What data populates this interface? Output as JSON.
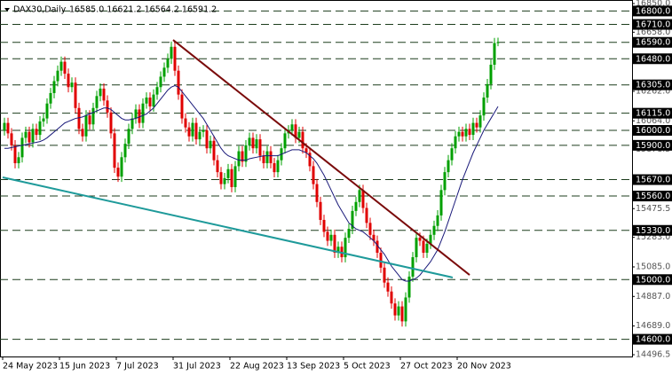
{
  "chart_data": {
    "type": "candlestick",
    "title": "DAX30,Daily",
    "ohlc_text": "16585.0 16621.2 16564.2 16591.2",
    "up_color": "#00a000",
    "down_color": "#e00000",
    "ma_color": "#1a1a7a",
    "ylim": [
      14496.5,
      16850
    ],
    "yticks": [
      {
        "value": 16850,
        "label": "16850.0"
      },
      {
        "value": 16658,
        "label": "16658.0"
      },
      {
        "value": 16460,
        "label": "16460.0"
      },
      {
        "value": 16262,
        "label": "16262.0"
      },
      {
        "value": 16064,
        "label": "16064.0"
      },
      15871.5,
      15673.5,
      15475.5,
      {
        "value": 15283,
        "label": "15283.0"
      },
      {
        "value": 15085,
        "label": "15085.0"
      },
      {
        "value": 14887,
        "label": "14887.0"
      },
      {
        "value": 14689,
        "label": "14689.0"
      },
      14496.5
    ],
    "levels": [
      {
        "value": 16800,
        "label": "16800.0"
      },
      {
        "value": 16710,
        "label": "16710.0"
      },
      {
        "value": 16590,
        "label": "16590.0"
      },
      {
        "value": 16480,
        "label": "16480.0"
      },
      {
        "value": 16305,
        "label": "16305.0"
      },
      {
        "value": 16115,
        "label": "16115.0"
      },
      {
        "value": 16000,
        "label": "16000.0"
      },
      {
        "value": 15900,
        "label": "15900.0"
      },
      {
        "value": 15670,
        "label": "15670.0"
      },
      {
        "value": 15560,
        "label": "15560.0"
      },
      {
        "value": 15330,
        "label": "15330.0"
      },
      {
        "value": 15000,
        "label": "15000.0"
      },
      {
        "value": 14600,
        "label": "14600.0"
      }
    ],
    "level_color": "#1d3d1d",
    "trendlines": [
      {
        "color": "#7a0a0a",
        "points": [
          [
            47.5,
            16606
          ],
          [
            131,
            15031
          ]
        ]
      },
      {
        "color": "#1e9a9a",
        "points": [
          [
            -0.5,
            15685
          ],
          [
            126.25,
            15014
          ]
        ]
      }
    ],
    "categories": [
      "24 May 2023",
      null,
      null,
      null,
      null,
      null,
      null,
      null,
      null,
      null,
      null,
      null,
      null,
      null,
      null,
      null,
      "15 Jun 2023",
      null,
      null,
      null,
      null,
      null,
      null,
      null,
      null,
      null,
      null,
      null,
      null,
      null,
      null,
      null,
      "7 Jul 2023",
      null,
      null,
      null,
      null,
      null,
      null,
      null,
      null,
      null,
      null,
      null,
      null,
      null,
      null,
      null,
      "31 Jul 2023",
      null,
      null,
      null,
      null,
      null,
      null,
      null,
      null,
      null,
      null,
      null,
      null,
      null,
      null,
      null,
      "22 Aug 2023",
      null,
      null,
      null,
      null,
      null,
      null,
      null,
      null,
      null,
      null,
      null,
      null,
      null,
      null,
      null,
      "13 Sep 2023",
      null,
      null,
      null,
      null,
      null,
      null,
      null,
      null,
      null,
      null,
      null,
      null,
      null,
      null,
      null,
      "5 Oct 2023",
      null,
      null,
      null,
      null,
      null,
      null,
      null,
      null,
      null,
      null,
      null,
      null,
      null,
      null,
      null,
      "27 Oct 2023",
      null,
      null,
      null,
      null,
      null,
      null,
      null,
      null,
      null,
      null,
      null,
      null,
      null,
      null,
      null,
      "20 Nov 2023",
      null,
      null,
      null,
      null,
      null,
      null,
      null,
      null,
      null,
      null,
      null
    ],
    "open": [
      16000,
      16050,
      15980,
      15900,
      15780,
      15820,
      15950,
      15990,
      15920,
      16010,
      15970,
      16060,
      16080,
      16180,
      16250,
      16330,
      16400,
      16460,
      16380,
      16290,
      16320,
      16150,
      16010,
      15960,
      16100,
      16040,
      16150,
      16230,
      16280,
      16200,
      16120,
      15980,
      15750,
      15690,
      15820,
      15910,
      16010,
      16080,
      16140,
      16050,
      16180,
      16220,
      16160,
      16240,
      16290,
      16360,
      16420,
      16480,
      16560,
      16400,
      16240,
      16080,
      16020,
      15960,
      16050,
      15940,
      15990,
      16000,
      15880,
      15930,
      15800,
      15720,
      15640,
      15680,
      15740,
      15620,
      15760,
      15860,
      15790,
      15900,
      15950,
      15880,
      15940,
      15830,
      15780,
      15860,
      15780,
      15720,
      15800,
      15880,
      15980,
      16000,
      16040,
      15950,
      15990,
      15880,
      15850,
      15760,
      15640,
      15520,
      15400,
      15320,
      15260,
      15300,
      15180,
      15220,
      15150,
      15280,
      15340,
      15460,
      15520,
      15600,
      15480,
      15380,
      15300,
      15260,
      15180,
      15080,
      14980,
      14920,
      14840,
      14760,
      14820,
      14720,
      14880,
      15020,
      15150,
      15280,
      15260,
      15180,
      15240,
      15300,
      15360,
      15430,
      15600,
      15720,
      15800,
      15880,
      15960,
      15990,
      15960,
      16010,
      15970,
      16050,
      16020,
      16100,
      16220,
      16310,
      16440,
      16585.0
    ],
    "high": [
      16085,
      16085,
      16015,
      15935,
      15855,
      15985,
      16025,
      16025,
      16045,
      16045,
      16095,
      16115,
      16215,
      16285,
      16365,
      16435,
      16495,
      16495,
      16415,
      16355,
      16355,
      16185,
      16045,
      16135,
      16135,
      16185,
      16265,
      16315,
      16315,
      16235,
      16155,
      16015,
      15785,
      15855,
      15945,
      16045,
      16115,
      16175,
      16175,
      16215,
      16255,
      16255,
      16275,
      16325,
      16395,
      16455,
      16515,
      16595,
      16595,
      16435,
      16275,
      16115,
      16055,
      16085,
      16085,
      16025,
      16035,
      16035,
      15965,
      15965,
      15835,
      15755,
      15715,
      15775,
      15775,
      15795,
      15895,
      15895,
      15935,
      15985,
      15985,
      15975,
      15975,
      15865,
      15895,
      15895,
      15815,
      15835,
      15915,
      16015,
      16035,
      16075,
      16075,
      16025,
      16025,
      15915,
      15885,
      15795,
      15675,
      15555,
      15435,
      15355,
      15335,
      15335,
      15255,
      15255,
      15315,
      15375,
      15495,
      15555,
      15635,
      15635,
      15515,
      15415,
      15335,
      15295,
      15215,
      15115,
      15015,
      14955,
      14875,
      14855,
      14855,
      14915,
      15055,
      15185,
      15315,
      15315,
      15295,
      15275,
      15335,
      15395,
      15465,
      15635,
      15755,
      15835,
      15915,
      15995,
      16025,
      16025,
      16045,
      16045,
      16085,
      16085,
      16135,
      16255,
      16345,
      16475,
      16620,
      16621.2
    ],
    "low": [
      15965,
      15945,
      15865,
      15745,
      15745,
      15785,
      15915,
      15885,
      15885,
      15935,
      15935,
      16025,
      16045,
      16145,
      16215,
      16295,
      16365,
      16345,
      16255,
      16255,
      16115,
      15975,
      15925,
      15925,
      16005,
      16005,
      16115,
      16195,
      16165,
      16085,
      15945,
      15715,
      15655,
      15655,
      15785,
      15875,
      15975,
      16045,
      16015,
      16015,
      16145,
      16125,
      16125,
      16205,
      16255,
      16325,
      16385,
      16445,
      16365,
      16205,
      16045,
      15985,
      15925,
      15925,
      15905,
      15905,
      15955,
      15845,
      15845,
      15765,
      15685,
      15605,
      15605,
      15645,
      15585,
      15585,
      15725,
      15755,
      15755,
      15865,
      15845,
      15845,
      15795,
      15745,
      15745,
      15745,
      15685,
      15685,
      15765,
      15845,
      15945,
      15965,
      15915,
      15915,
      15845,
      15815,
      15725,
      15605,
      15485,
      15365,
      15285,
      15225,
      15225,
      15145,
      15145,
      15115,
      15115,
      15245,
      15305,
      15425,
      15485,
      15445,
      15345,
      15265,
      15225,
      15145,
      15045,
      14945,
      14885,
      14805,
      14725,
      14725,
      14685,
      14685,
      14845,
      14985,
      15115,
      15225,
      15145,
      15145,
      15205,
      15265,
      15325,
      15395,
      15565,
      15685,
      15765,
      15845,
      15925,
      15925,
      15925,
      15935,
      15935,
      15985,
      15985,
      16065,
      16185,
      16275,
      16405,
      16564.2
    ],
    "close": [
      16050,
      15980,
      15900,
      15780,
      15820,
      15950,
      15990,
      15920,
      16010,
      15970,
      16060,
      16080,
      16180,
      16250,
      16330,
      16400,
      16460,
      16380,
      16290,
      16320,
      16150,
      16010,
      15960,
      16100,
      16040,
      16150,
      16230,
      16280,
      16200,
      16120,
      15980,
      15750,
      15690,
      15820,
      15910,
      16010,
      16080,
      16140,
      16050,
      16180,
      16220,
      16160,
      16240,
      16290,
      16360,
      16420,
      16480,
      16560,
      16400,
      16240,
      16080,
      16020,
      15960,
      16050,
      15940,
      15990,
      16000,
      15880,
      15930,
      15800,
      15720,
      15640,
      15680,
      15740,
      15620,
      15760,
      15860,
      15790,
      15900,
      15950,
      15880,
      15940,
      15830,
      15780,
      15860,
      15780,
      15720,
      15800,
      15880,
      15980,
      16000,
      16040,
      15950,
      15990,
      15880,
      15850,
      15760,
      15640,
      15520,
      15400,
      15320,
      15260,
      15300,
      15180,
      15220,
      15150,
      15280,
      15340,
      15460,
      15520,
      15600,
      15480,
      15380,
      15300,
      15260,
      15180,
      15080,
      14980,
      14920,
      14840,
      14760,
      14820,
      14720,
      14880,
      15020,
      15150,
      15280,
      15260,
      15180,
      15240,
      15300,
      15360,
      15430,
      15600,
      15720,
      15800,
      15880,
      15960,
      15990,
      15960,
      16010,
      15970,
      16050,
      16020,
      16100,
      16220,
      16310,
      16440,
      16585,
      16591.2
    ],
    "ma_values": [
      15880,
      15880,
      15885,
      15890,
      15895,
      15900,
      15905,
      15910,
      15915,
      15920,
      15925,
      15935,
      15950,
      15970,
      15990,
      16010,
      16030,
      16050,
      16060,
      16070,
      16080,
      16085,
      16090,
      16100,
      16110,
      16120,
      16130,
      16140,
      16150,
      16150,
      16140,
      16120,
      16100,
      16080,
      16070,
      16070,
      16075,
      16080,
      16090,
      16100,
      16110,
      16130,
      16150,
      16180,
      16210,
      16240,
      16270,
      16290,
      16300,
      16290,
      16260,
      16230,
      16200,
      16170,
      16140,
      16110,
      16080,
      16040,
      16000,
      15960,
      15920,
      15880,
      15850,
      15830,
      15820,
      15810,
      15800,
      15800,
      15800,
      15810,
      15815,
      15820,
      15825,
      15830,
      15830,
      15830,
      15830,
      15830,
      15840,
      15850,
      15860,
      15870,
      15870,
      15870,
      15860,
      15850,
      15830,
      15810,
      15780,
      15740,
      15700,
      15650,
      15600,
      15550,
      15500,
      15460,
      15420,
      15380,
      15360,
      15340,
      15330,
      15320,
      15300,
      15280,
      15260,
      15230,
      15200,
      15170,
      15130,
      15090,
      15060,
      15030,
      15000,
      14990,
      14990,
      15000,
      15010,
      15030,
      15060,
      15090,
      15120,
      15160,
      15200,
      15260,
      15320,
      15390,
      15460,
      15530,
      15600,
      15670,
      15730,
      15790,
      15850,
      15900,
      15950,
      16000,
      16040,
      16080,
      16120,
      16160
    ]
  }
}
